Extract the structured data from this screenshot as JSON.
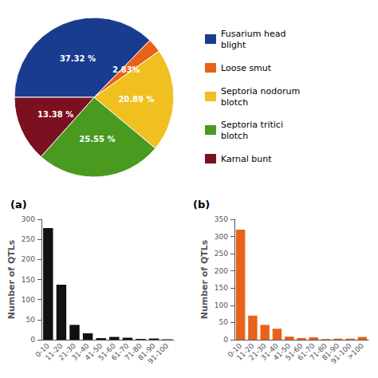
{
  "chart_data": [
    {
      "type": "pie",
      "categories": [
        "Fusarium head\nblight",
        "Loose smut",
        "Septoria nodorum\nblotch",
        "Septoria tritici\nblotch",
        "Karnal bunt"
      ],
      "values": [
        37.32,
        2.83,
        20.89,
        25.55,
        13.38
      ],
      "value_labels": [
        "37.32 %",
        "2.83%",
        "20.89 %",
        "25.55 %",
        "13.38 %"
      ],
      "colors": [
        "#1a3c8f",
        "#e8621a",
        "#f0c020",
        "#4a9a20",
        "#7a1020"
      ],
      "data_labels": true,
      "legend": "right"
    },
    {
      "type": "bar",
      "title": "(a)",
      "categories": [
        "0-10",
        "11-20",
        "21-30",
        "31-40",
        "41-50",
        "51-60",
        "61-70",
        "71-80",
        "81-90",
        "91-100"
      ],
      "values": [
        278,
        137,
        37,
        16,
        4,
        7,
        5,
        2,
        3,
        1
      ],
      "color": "#111111",
      "ylabel": "Number of QTLs",
      "ylim": [
        0,
        300
      ],
      "yticks": [
        0,
        50,
        100,
        150,
        200,
        250,
        300
      ],
      "grid": false
    },
    {
      "type": "bar",
      "title": "(b)",
      "categories": [
        "0-10",
        "11-20",
        "21-30",
        "31-40",
        "41-50",
        "51-60",
        "61-70",
        "71-80",
        "81-90",
        "91-100",
        ">100"
      ],
      "values": [
        320,
        70,
        43,
        32,
        9,
        5,
        7,
        2,
        3,
        3,
        8
      ],
      "color": "#e8621a",
      "ylabel": "Number of QTLs",
      "ylim": [
        0,
        350
      ],
      "yticks": [
        0,
        50,
        100,
        150,
        200,
        250,
        300,
        350
      ],
      "grid": false
    }
  ]
}
